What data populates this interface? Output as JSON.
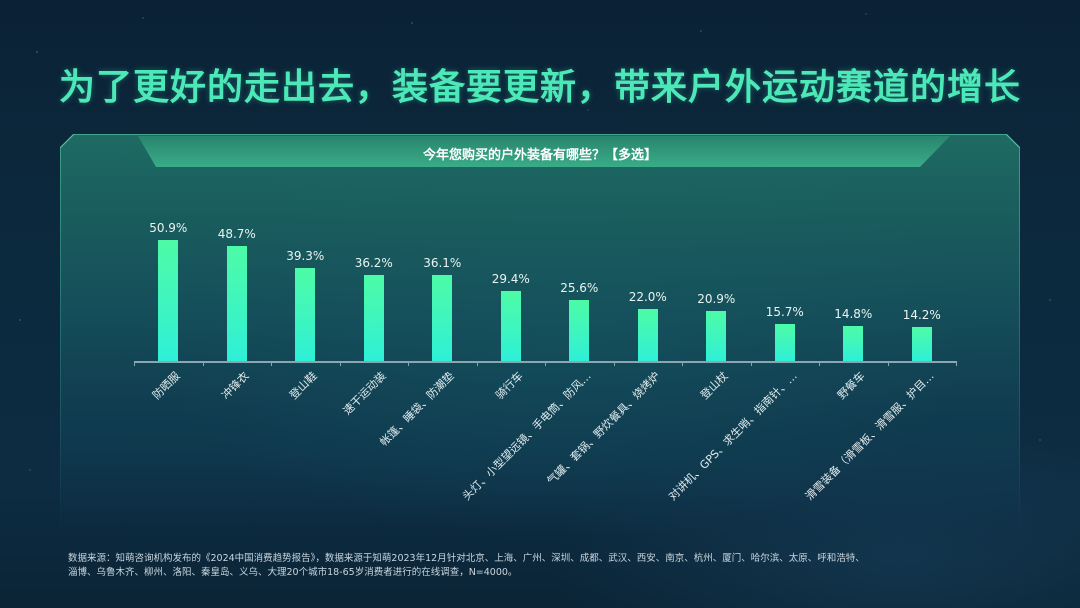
{
  "headline": "为了更好的走出去，装备要更新，带来户外运动赛道的增长",
  "panel": {
    "title": "今年您购买的户外装备有哪些？【多选】"
  },
  "chart_data": {
    "type": "bar",
    "title": "今年您购买的户外装备有哪些？【多选】",
    "xlabel": "",
    "ylabel": "",
    "grid": false,
    "legend": null,
    "ylim": [
      0,
      55
    ],
    "categories": [
      "防晒服",
      "冲锋衣",
      "登山鞋",
      "速干运动装",
      "帐篷、睡袋、防潮垫",
      "骑行车",
      "头灯、小型望远镜、手电筒、防风…",
      "气罐、套锅、野炊餐具、烧烤炉",
      "登山杖",
      "对讲机、GPS、求生哨、指南针、…",
      "野餐车",
      "滑雪装备（滑雪板、滑雪服、护目…"
    ],
    "values": [
      50.9,
      48.7,
      39.3,
      36.2,
      36.1,
      29.4,
      25.6,
      22.0,
      20.9,
      15.7,
      14.8,
      14.2
    ],
    "value_labels": [
      "50.9%",
      "48.7%",
      "39.3%",
      "36.2%",
      "36.1%",
      "29.4%",
      "25.6%",
      "22.0%",
      "20.9%",
      "15.7%",
      "14.8%",
      "14.2%"
    ],
    "unit": "%",
    "colors": {
      "bar_top": "#4dfba6",
      "bar_bottom": "#2ef0d8"
    }
  },
  "footnote": {
    "line1": "数据来源：知萌咨询机构发布的《2024中国消费趋势报告》，数据来源于知萌2023年12月针对北京、上海、广州、深圳、成都、武汉、西安、南京、杭州、厦门、哈尔滨、太原、呼和浩特、",
    "line2": "淄博、乌鲁木齐、柳州、洛阳、秦皇岛、义乌、大理20个城市18-65岁消费者进行的在线调查，N=4000。"
  },
  "colors": {
    "headline": "#4de8b8",
    "panel_header": "#2a9a7a",
    "background": "#0c2a3e"
  }
}
